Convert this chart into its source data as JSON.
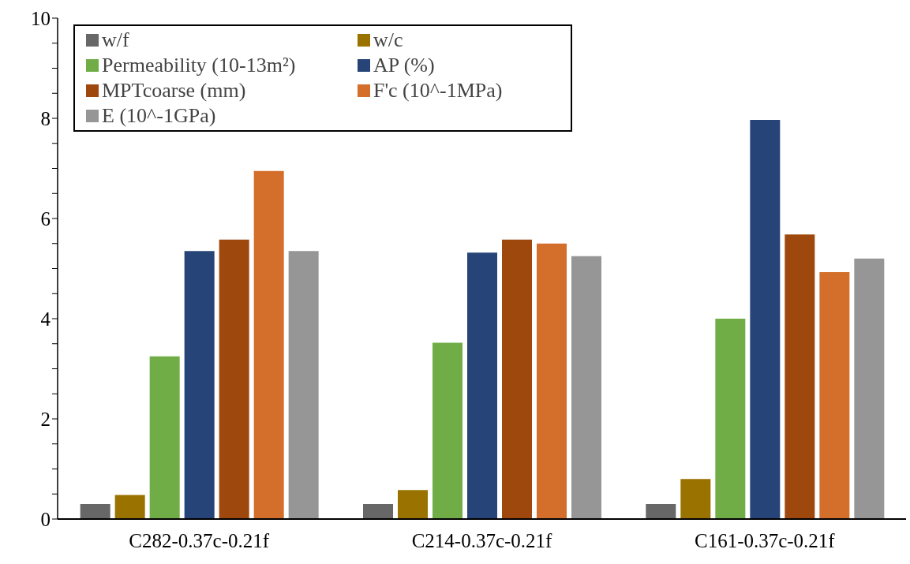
{
  "chart_data": {
    "type": "bar",
    "categories": [
      "C282-0.37c-0.21f",
      "C214-0.37c-0.21f",
      "C161-0.37c-0.21f"
    ],
    "series": [
      {
        "name": "w/f",
        "color": "#676767",
        "values": [
          0.3,
          0.3,
          0.3
        ]
      },
      {
        "name": "w/c",
        "color": "#9a7200",
        "values": [
          0.48,
          0.58,
          0.8
        ]
      },
      {
        "name": "Permeability (10-13m²)",
        "color": "#70ad47",
        "values": [
          3.25,
          3.52,
          4.0
        ]
      },
      {
        "name": "AP (%)",
        "color": "#264478",
        "values": [
          5.35,
          5.32,
          7.97
        ]
      },
      {
        "name": "MPTcoarse (mm)",
        "color": "#9e480e",
        "values": [
          5.58,
          5.58,
          5.68
        ]
      },
      {
        "name": "F'c (10^-1MPa)",
        "color": "#d36f2b",
        "values": [
          6.95,
          5.5,
          4.93
        ]
      },
      {
        "name": "E (10^-1GPa)",
        "color": "#969696",
        "values": [
          5.35,
          5.25,
          5.2
        ]
      }
    ],
    "ylim": [
      0,
      10
    ],
    "yticks": [
      0,
      {
        "value": 0.5,
        "label": null
      },
      {
        "value": 1,
        "label": null
      },
      {
        "value": 1.5,
        "label": null
      },
      2,
      {
        "value": 2.5,
        "label": null
      },
      {
        "value": 3,
        "label": null
      },
      {
        "value": 3.5,
        "label": null
      },
      4,
      {
        "value": 4.5,
        "label": null
      },
      {
        "value": 5,
        "label": null
      },
      {
        "value": 5.5,
        "label": null
      },
      6,
      {
        "value": 6.5,
        "label": null
      },
      {
        "value": 7,
        "label": null
      },
      {
        "value": 7.5,
        "label": null
      },
      8,
      {
        "value": 8.5,
        "label": null
      },
      {
        "value": 9,
        "label": null
      },
      {
        "value": 9.5,
        "label": null
      },
      10
    ],
    "grid": false,
    "legend": "top left"
  }
}
